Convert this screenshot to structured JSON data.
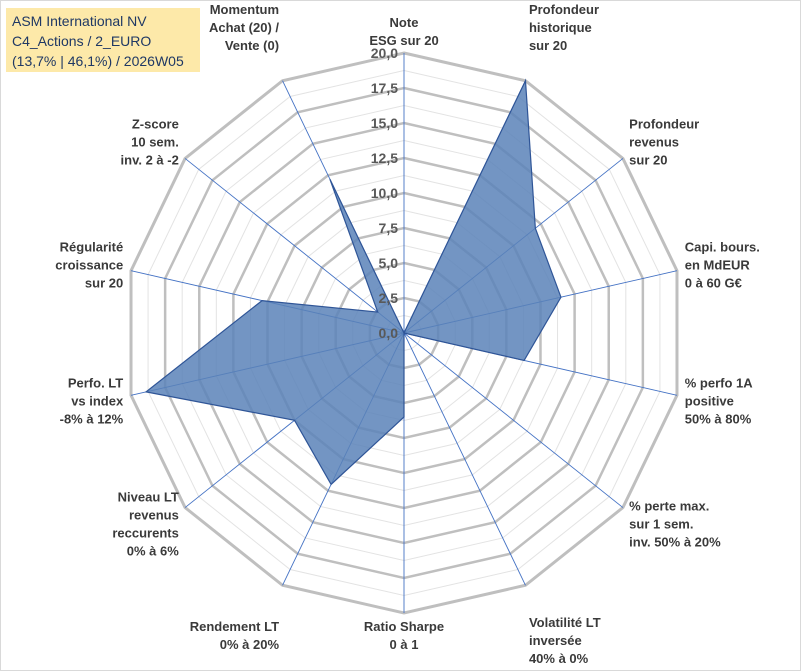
{
  "header": {
    "company": "ASM International NV",
    "category": "C4_Actions / 2_EURO",
    "stats": "(13,7% | 46,1%) / 2026W05"
  },
  "colors": {
    "grid": "#bfbfbf",
    "spoke": "#4472c4",
    "fill": "#5b82b8",
    "stroke": "#2f5597",
    "title_bg": "#fde9a9",
    "title_text": "#1f3864"
  },
  "chart_data": {
    "type": "radar",
    "r_range": [
      0,
      20
    ],
    "r_step": 2.5,
    "tick_labels": [
      "0,0",
      "2,5",
      "5,0",
      "7,5",
      "10,0",
      "12,5",
      "15,0",
      "17,5",
      "20,0"
    ],
    "axes": [
      {
        "label": [
          "Note",
          "ESG sur 20"
        ],
        "value": 0
      },
      {
        "label": [
          "Profondeur",
          "historique",
          "sur 20"
        ],
        "value": 20
      },
      {
        "label": [
          "Profondeur",
          "revenus",
          "sur 20"
        ],
        "value": 12
      },
      {
        "label": [
          "Capi. bours.",
          "en MdEUR",
          "0 à 60 G€"
        ],
        "value": 11.5
      },
      {
        "label": [
          "% perfo 1A",
          "positive",
          "50% à 80%"
        ],
        "value": 8.8
      },
      {
        "label": [
          "% perte max.",
          "sur 1 sem.",
          "inv. 50% à 20%"
        ],
        "value": 0
      },
      {
        "label": [
          "Volatilité LT",
          "inversée",
          "40% à 0%"
        ],
        "value": 0
      },
      {
        "label": [
          "Ratio Sharpe",
          "0 à 1"
        ],
        "value": 6
      },
      {
        "label": [
          "Rendement LT",
          "0% à 20%"
        ],
        "value": 12
      },
      {
        "label": [
          "Niveau LT",
          "revenus",
          "reccurents",
          "0% à 6%"
        ],
        "value": 10
      },
      {
        "label": [
          "Perfo. LT",
          "vs index",
          "-8% à 12%"
        ],
        "value": 18.9
      },
      {
        "label": [
          "Régularité",
          "croissance",
          "sur 20"
        ],
        "value": 10.4
      },
      {
        "label": [
          "Z-score",
          "10 sem.",
          "inv. 2 à -2"
        ],
        "value": 2.4
      },
      {
        "label": [
          "Momentum",
          "Achat (20) /",
          "Vente (0)"
        ],
        "value": 12.2
      }
    ]
  }
}
